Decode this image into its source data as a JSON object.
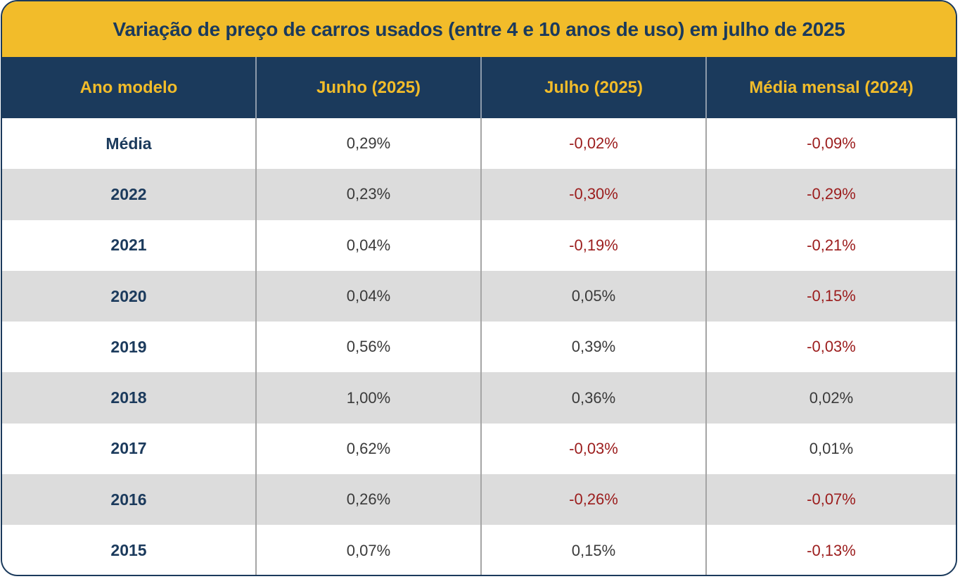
{
  "colors": {
    "title_bg": "#f2bc2a",
    "header_bg": "#1b3a5c",
    "header_text": "#f2bc2a",
    "title_text": "#1b3a5c",
    "row_alt_bg": "#dcdcdc",
    "negative_text": "#9b1c1c",
    "positive_text": "#3a3a3a"
  },
  "chart_data": {
    "type": "table",
    "title": "Variação de preço de carros usados (entre 4 e 10 anos de uso) em julho de 2025",
    "columns": [
      "Ano modelo",
      "Junho (2025)",
      "Julho (2025)",
      "Média mensal (2024)"
    ],
    "rows": [
      [
        "Média",
        "0,29%",
        "-0,02%",
        "-0,09%"
      ],
      [
        "2022",
        "0,23%",
        "-0,30%",
        "-0,29%"
      ],
      [
        "2021",
        "0,04%",
        "-0,19%",
        "-0,21%"
      ],
      [
        "2020",
        "0,04%",
        "0,05%",
        "-0,15%"
      ],
      [
        "2019",
        "0,56%",
        "0,39%",
        "-0,03%"
      ],
      [
        "2018",
        "1,00%",
        "0,36%",
        "0,02%"
      ],
      [
        "2017",
        "0,62%",
        "-0,03%",
        "0,01%"
      ],
      [
        "2016",
        "0,26%",
        "-0,26%",
        "-0,07%"
      ],
      [
        "2015",
        "0,07%",
        "0,15%",
        "-0,13%"
      ]
    ]
  }
}
